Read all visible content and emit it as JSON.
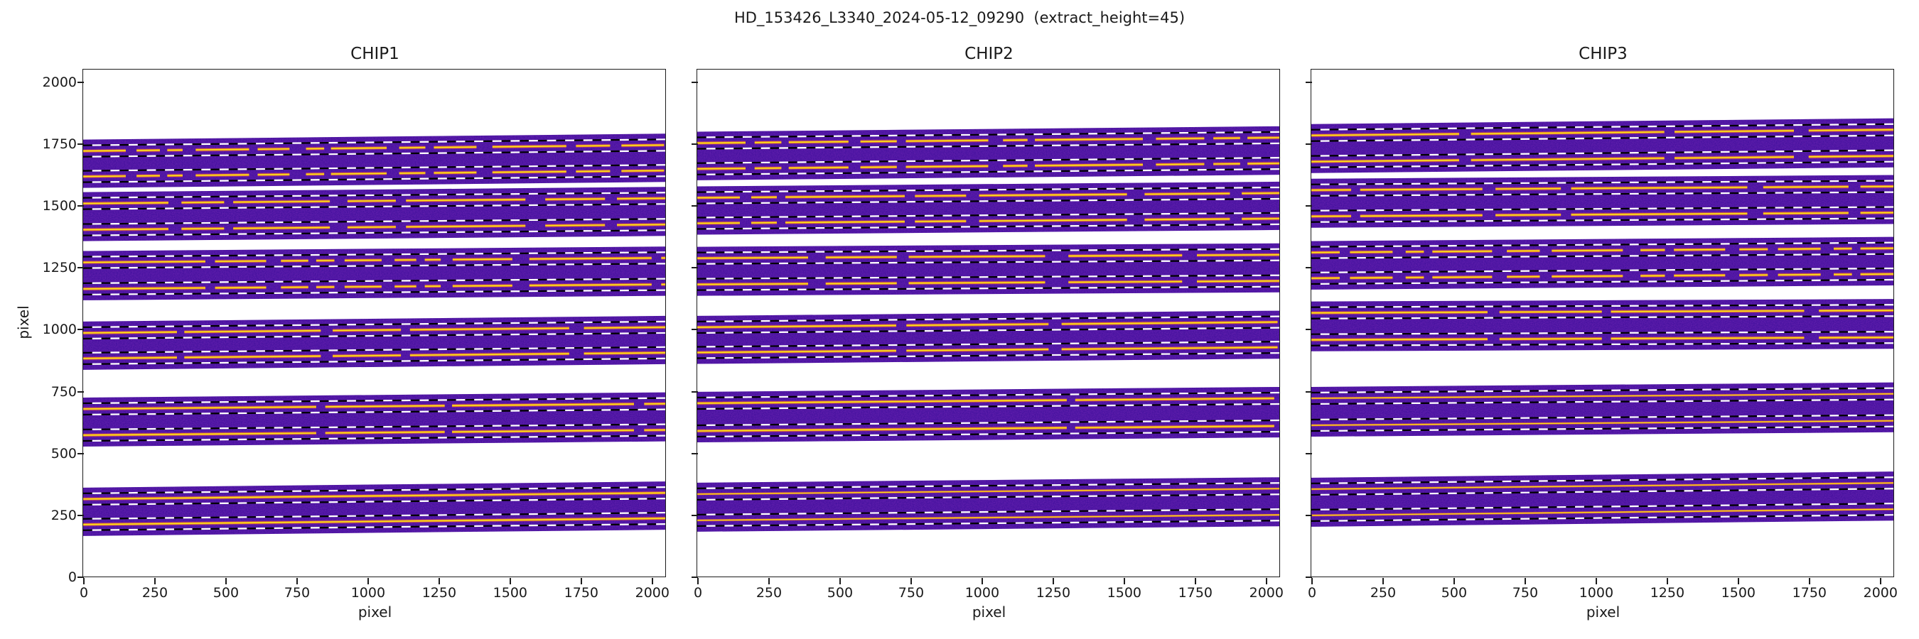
{
  "chart_data": {
    "type": "heatmap",
    "title": "HD_153426_L3340_2024-05-12_09290  (extract_height=45)",
    "xlabel": "pixel",
    "ylabel": "pixel",
    "xlim": [
      0,
      2048
    ],
    "ylim": [
      0,
      2048
    ],
    "xticks": [
      0,
      250,
      500,
      750,
      1000,
      1250,
      1500,
      1750,
      2000
    ],
    "yticks": [
      0,
      250,
      500,
      750,
      1000,
      1250,
      1500,
      1750,
      2000
    ],
    "grid": false,
    "legend": null,
    "extract_height": 45,
    "trace_half_window": 23,
    "image_half_height": 46,
    "colors": {
      "band": "#3c0e9a",
      "noise_speckle": "#c02ad6",
      "trace_core": "#f8e223",
      "trace_mid": "#ef7f1c",
      "trace_halo": "#b0358f",
      "dash_black": "#000000",
      "dash_white": "#ffffff",
      "axis": "#1c1c1c"
    },
    "panels": [
      {
        "title": "CHIP1",
        "groups": [
          {
            "t_upper": 1719,
            "t_lower": 1616,
            "slope": 24,
            "thin": false,
            "gaps": [
              150,
              38,
              82,
              26,
              54,
              46,
              188,
              30,
              112,
              58,
              64,
              24,
              196,
              44,
              92,
              30,
              150,
              56,
              260,
              34,
              120,
              40
            ]
          },
          {
            "t_upper": 1507,
            "t_lower": 1401,
            "slope": 21,
            "thin": false,
            "gaps": [
              300,
              46,
              150,
              32,
              340,
              62,
              170,
              36,
              420,
              70,
              210,
              42
            ]
          },
          {
            "t_upper": 1269,
            "t_lower": 1162,
            "slope": 18,
            "thin": false,
            "gaps": [
              430,
              34,
              180,
              52,
              96,
              28,
              64,
              36,
              130,
              46,
              76,
              30,
              56,
              42,
              210,
              60
            ]
          },
          {
            "t_upper": 984,
            "t_lower": 881,
            "slope": 23,
            "thin": false,
            "gaps": [
              330,
              26,
              480,
              42,
              240,
              32,
              560,
              52
            ]
          },
          {
            "t_upper": 677,
            "t_lower": 571,
            "slope": 21,
            "thin": false,
            "gaps": [
              820,
              32,
              420,
              26,
              640,
              36
            ]
          },
          {
            "t_upper": 313,
            "t_lower": 210,
            "slope": 25,
            "thin": false,
            "gaps": [
              2100
            ]
          }
        ]
      },
      {
        "title": "CHIP2",
        "groups": [
          {
            "t_upper": 1751,
            "t_lower": 1647,
            "slope": 22,
            "thin": false,
            "gaps": [
              170,
              32,
              94,
              26,
              210,
              42,
              128,
              32,
              290,
              52,
              86,
              26,
              380,
              46
            ]
          },
          {
            "t_upper": 1530,
            "t_lower": 1427,
            "slope": 19,
            "thin": false,
            "gaps": [
              150,
              40,
              90,
              30,
              420,
              36,
              180,
              46,
              520,
              62,
              300,
              42
            ]
          },
          {
            "t_upper": 1286,
            "t_lower": 1180,
            "slope": 14,
            "thin": false,
            "gaps": [
              390,
              62,
              250,
              42,
              480,
              82,
              400,
              52
            ]
          },
          {
            "t_upper": 1007,
            "t_lower": 905,
            "slope": 21,
            "thin": false,
            "gaps": [
              700,
              36,
              500,
              46,
              760,
              42
            ]
          },
          {
            "t_upper": 700,
            "t_lower": 588,
            "slope": 20,
            "thin": false,
            "gaps": [
              1300,
              30,
              700,
              24
            ]
          },
          {
            "t_upper": 333,
            "t_lower": 227,
            "slope": 22,
            "thin": true,
            "gaps": [
              2100
            ]
          }
        ]
      },
      {
        "title": "CHIP3",
        "groups": [
          {
            "t_upper": 1782,
            "t_lower": 1676,
            "slope": 23,
            "thin": false,
            "gaps": [
              520,
              42,
              680,
              36,
              420,
              52,
              360,
              46
            ]
          },
          {
            "t_upper": 1561,
            "t_lower": 1455,
            "slope": 15,
            "thin": false,
            "gaps": [
              140,
              32,
              430,
              46,
              230,
              36,
              620,
              56,
              300,
              42
            ]
          },
          {
            "t_upper": 1309,
            "t_lower": 1205,
            "slope": 17,
            "thin": false,
            "gaps": [
              100,
              36,
              150,
              46,
              64,
              30,
              210,
              52,
              116,
              42,
              250,
              62,
              86,
              32,
              180,
              50
            ]
          },
          {
            "t_upper": 1065,
            "t_lower": 956,
            "slope": 10,
            "thin": false,
            "gaps": [
              620,
              42,
              360,
              32,
              680,
              52
            ]
          },
          {
            "t_upper": 720,
            "t_lower": 611,
            "slope": 18,
            "thin": true,
            "gaps": [
              2100
            ]
          },
          {
            "t_upper": 353,
            "t_lower": 247,
            "slope": 25,
            "thin": true,
            "gaps": [
              2100
            ]
          }
        ]
      }
    ]
  }
}
